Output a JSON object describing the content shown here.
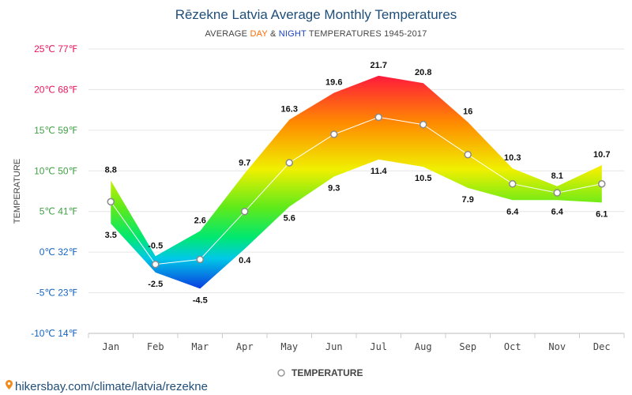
{
  "chart_data": {
    "type": "area",
    "title": "Rēzekne Latvia Average Monthly Temperatures",
    "subtitle": {
      "prefix": "AVERAGE ",
      "day": "DAY",
      "mid": " & ",
      "night": "NIGHT",
      "suffix": " TEMPERATURES 1945-2017"
    },
    "ylabel": "TEMPERATURE",
    "ylim": [
      -10,
      25
    ],
    "yticks": [
      {
        "value": 25,
        "label": "25℃ 77℉",
        "color": "#e8175d"
      },
      {
        "value": 20,
        "label": "20℃ 68℉",
        "color": "#e8175d"
      },
      {
        "value": 15,
        "label": "15℃ 59℉",
        "color": "#43a047"
      },
      {
        "value": 10,
        "label": "10℃ 50℉",
        "color": "#43a047"
      },
      {
        "value": 5,
        "label": "5℃ 41℉",
        "color": "#43a047"
      },
      {
        "value": 0,
        "label": "0℃ 32℉",
        "color": "#1565c0"
      },
      {
        "value": -5,
        "label": "-5℃ 23℉",
        "color": "#1565c0"
      },
      {
        "value": -10,
        "label": "-10℃ 14℉",
        "color": "#1565c0"
      }
    ],
    "categories": [
      "Jan",
      "Feb",
      "Mar",
      "Apr",
      "May",
      "Jun",
      "Jul",
      "Aug",
      "Sep",
      "Oct",
      "Nov",
      "Dec"
    ],
    "day": [
      8.8,
      -0.5,
      2.6,
      9.7,
      16.3,
      19.6,
      21.7,
      20.8,
      16,
      10.3,
      8.1,
      10.7
    ],
    "night": [
      3.5,
      -2.5,
      -4.5,
      0.4,
      5.6,
      9.3,
      11.4,
      10.5,
      7.9,
      6.4,
      6.4,
      6.1
    ],
    "day_labels": [
      "8.8",
      "-0.5",
      "2.6",
      "9.7",
      "16.3",
      "19.6",
      "21.7",
      "20.8",
      "16",
      "10.3",
      "8.1",
      "10.7"
    ],
    "night_labels": [
      "3.5",
      "-2.5",
      "-4.5",
      "0.4",
      "5.6",
      "9.3",
      "11.4",
      "10.5",
      "7.9",
      "6.4",
      "6.4",
      "6.1"
    ],
    "series": [
      {
        "name": "TEMPERATURE",
        "values": [
          6.2,
          -1.5,
          -0.9,
          5.0,
          11.0,
          14.5,
          16.6,
          15.7,
          12.0,
          8.4,
          7.3,
          8.4
        ]
      }
    ],
    "legend": "bottom",
    "grid": true,
    "colors": {
      "day": "#ff6a00",
      "night": "#1a40c0",
      "line": "#ffffff"
    }
  },
  "source": "hikersbay.com/climate/latvia/rezekne"
}
